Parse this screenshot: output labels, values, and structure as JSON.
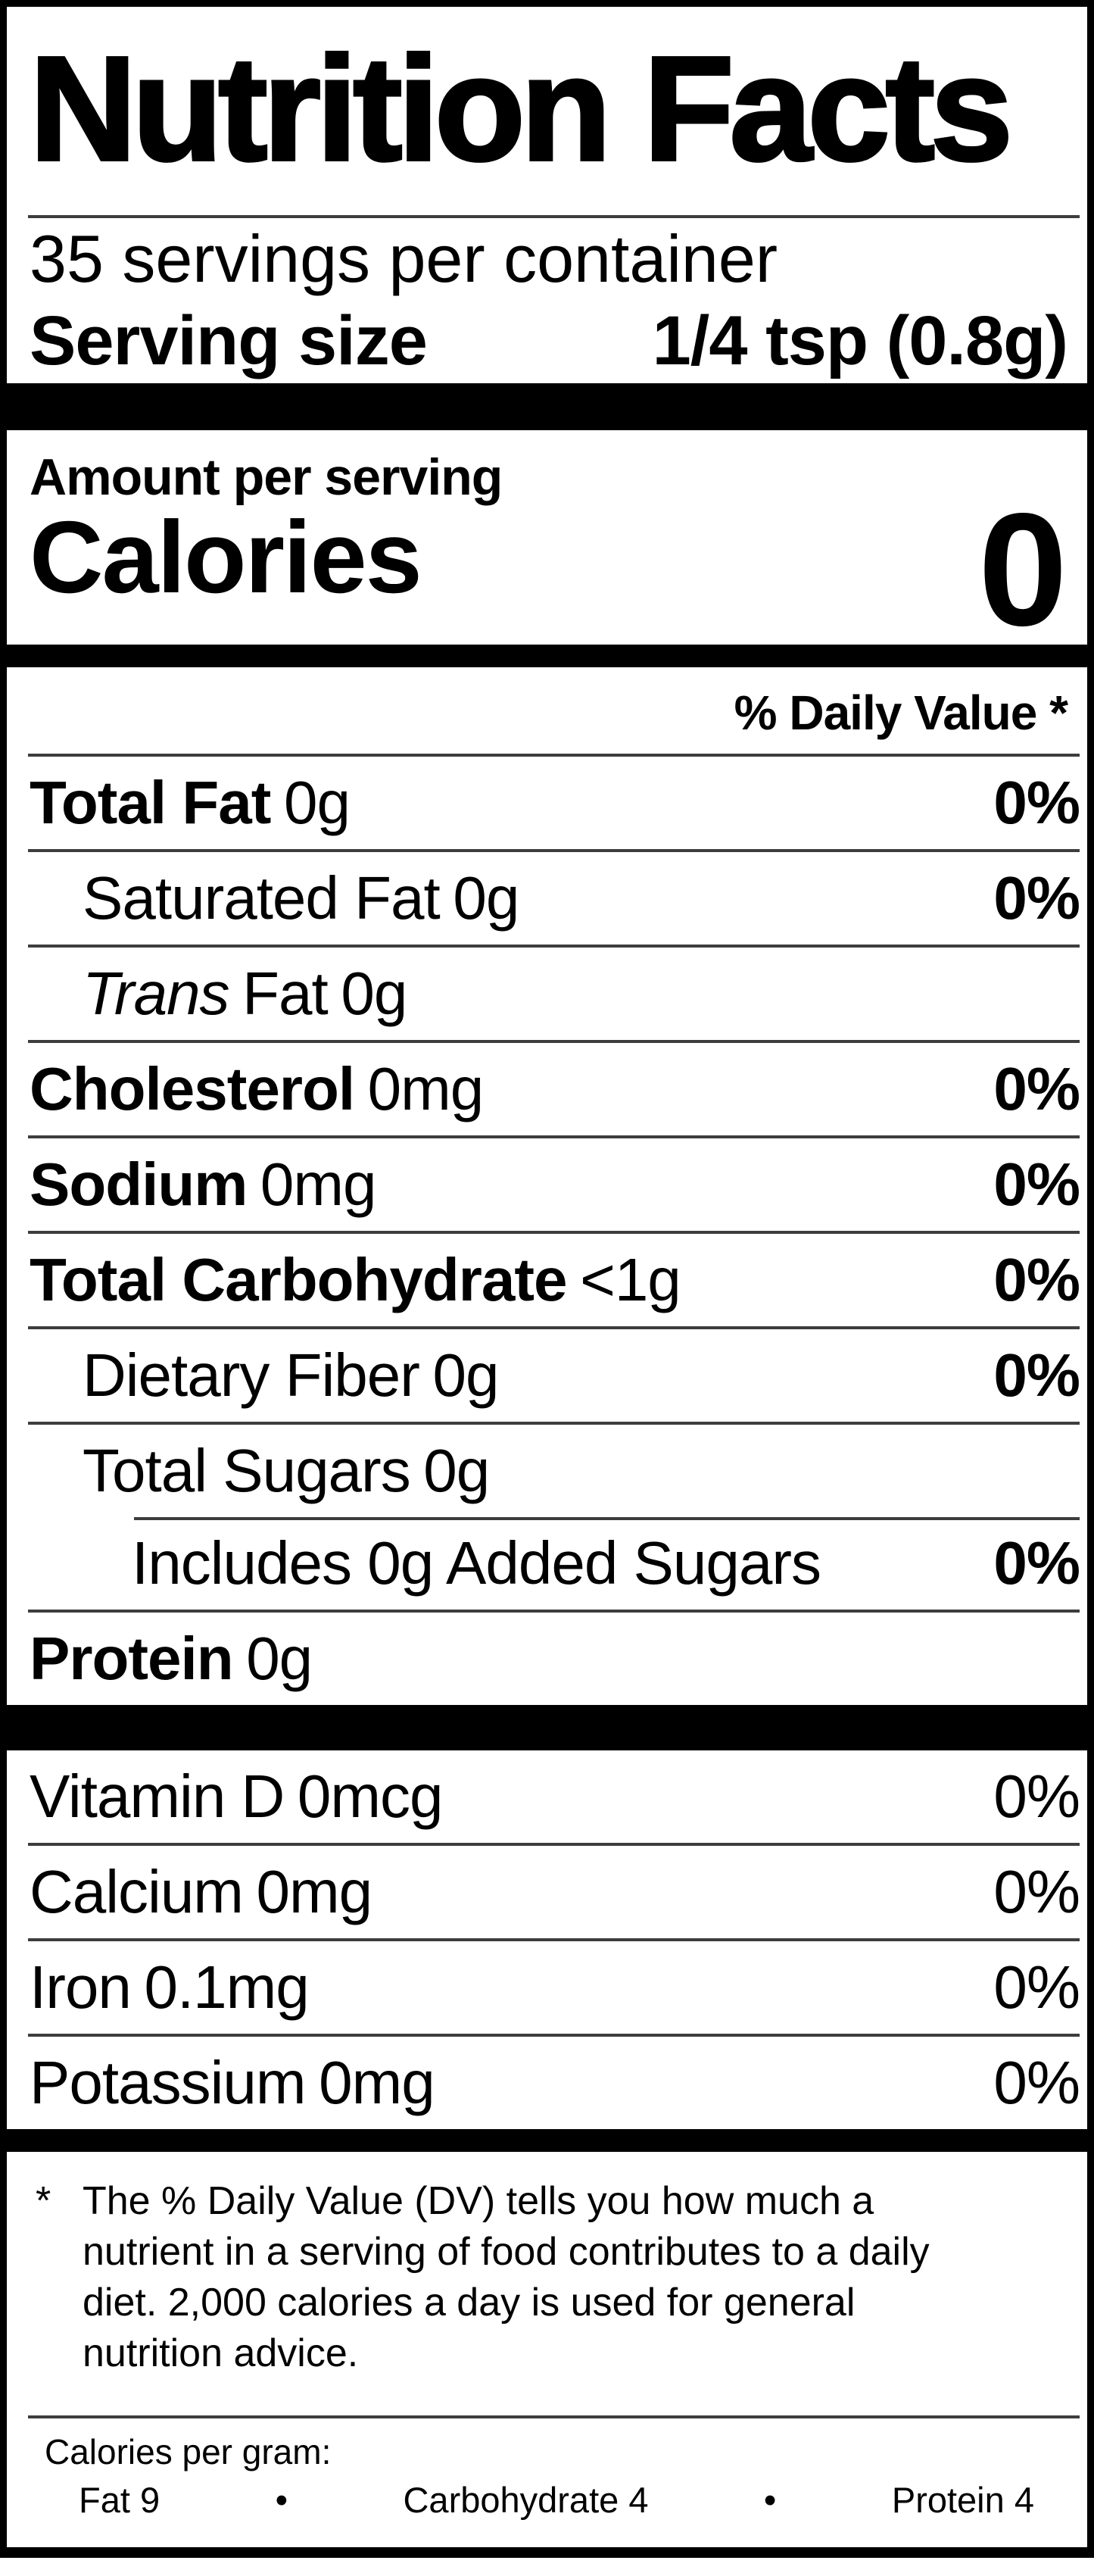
{
  "title": "Nutrition Facts",
  "servings_per_container": "35 servings per container",
  "serving_size": {
    "label": "Serving size",
    "value": "1/4 tsp (0.8g)"
  },
  "amount_per_serving": "Amount per serving",
  "calories": {
    "label": "Calories",
    "value": "0"
  },
  "daily_value_header": "% Daily Value *",
  "nutrient_rows": [
    {
      "name": "Total Fat",
      "amount": "0g",
      "dv": "0%"
    },
    {
      "name": "Saturated Fat",
      "amount": "0g",
      "dv": "0%"
    },
    {
      "name_italic": "Trans",
      "name_rest": "Fat",
      "amount": "0g"
    },
    {
      "name": "Cholesterol",
      "amount": "0mg",
      "dv": "0%"
    },
    {
      "name": "Sodium",
      "amount": "0mg",
      "dv": "0%"
    },
    {
      "name": "Total Carbohydrate",
      "amount": "<1g",
      "dv": "0%"
    },
    {
      "name": "Dietary Fiber",
      "amount": "0g",
      "dv": "0%"
    },
    {
      "name": "Total Sugars",
      "amount": "0g"
    },
    {
      "name": "Includes 0g Added Sugars",
      "dv": "0%"
    },
    {
      "name": "Protein",
      "amount": "0g"
    }
  ],
  "vitamin_rows": [
    {
      "name": "Vitamin D",
      "amount": "0mcg",
      "dv": "0%"
    },
    {
      "name": "Calcium",
      "amount": "0mg",
      "dv": "0%"
    },
    {
      "name": "Iron",
      "amount": "0.1mg",
      "dv": "0%"
    },
    {
      "name": "Potassium",
      "amount": "0mg",
      "dv": "0%"
    }
  ],
  "footnote": {
    "marker": "*",
    "text": "The % Daily Value (DV) tells you how much a nutrient in a serving of food contributes to a daily diet. 2,000 calories a day is used for general nutrition advice."
  },
  "calories_per_gram": {
    "heading": "Calories per gram:",
    "fat": "Fat 9",
    "bullet1": "•",
    "carbohydrate": "Carbohydrate 4",
    "bullet2": "•",
    "protein": "Protein 4"
  },
  "colors": {
    "background": "#ffffff",
    "text": "#000000",
    "bar": "#000000",
    "hairline": "#3d3d3d"
  }
}
